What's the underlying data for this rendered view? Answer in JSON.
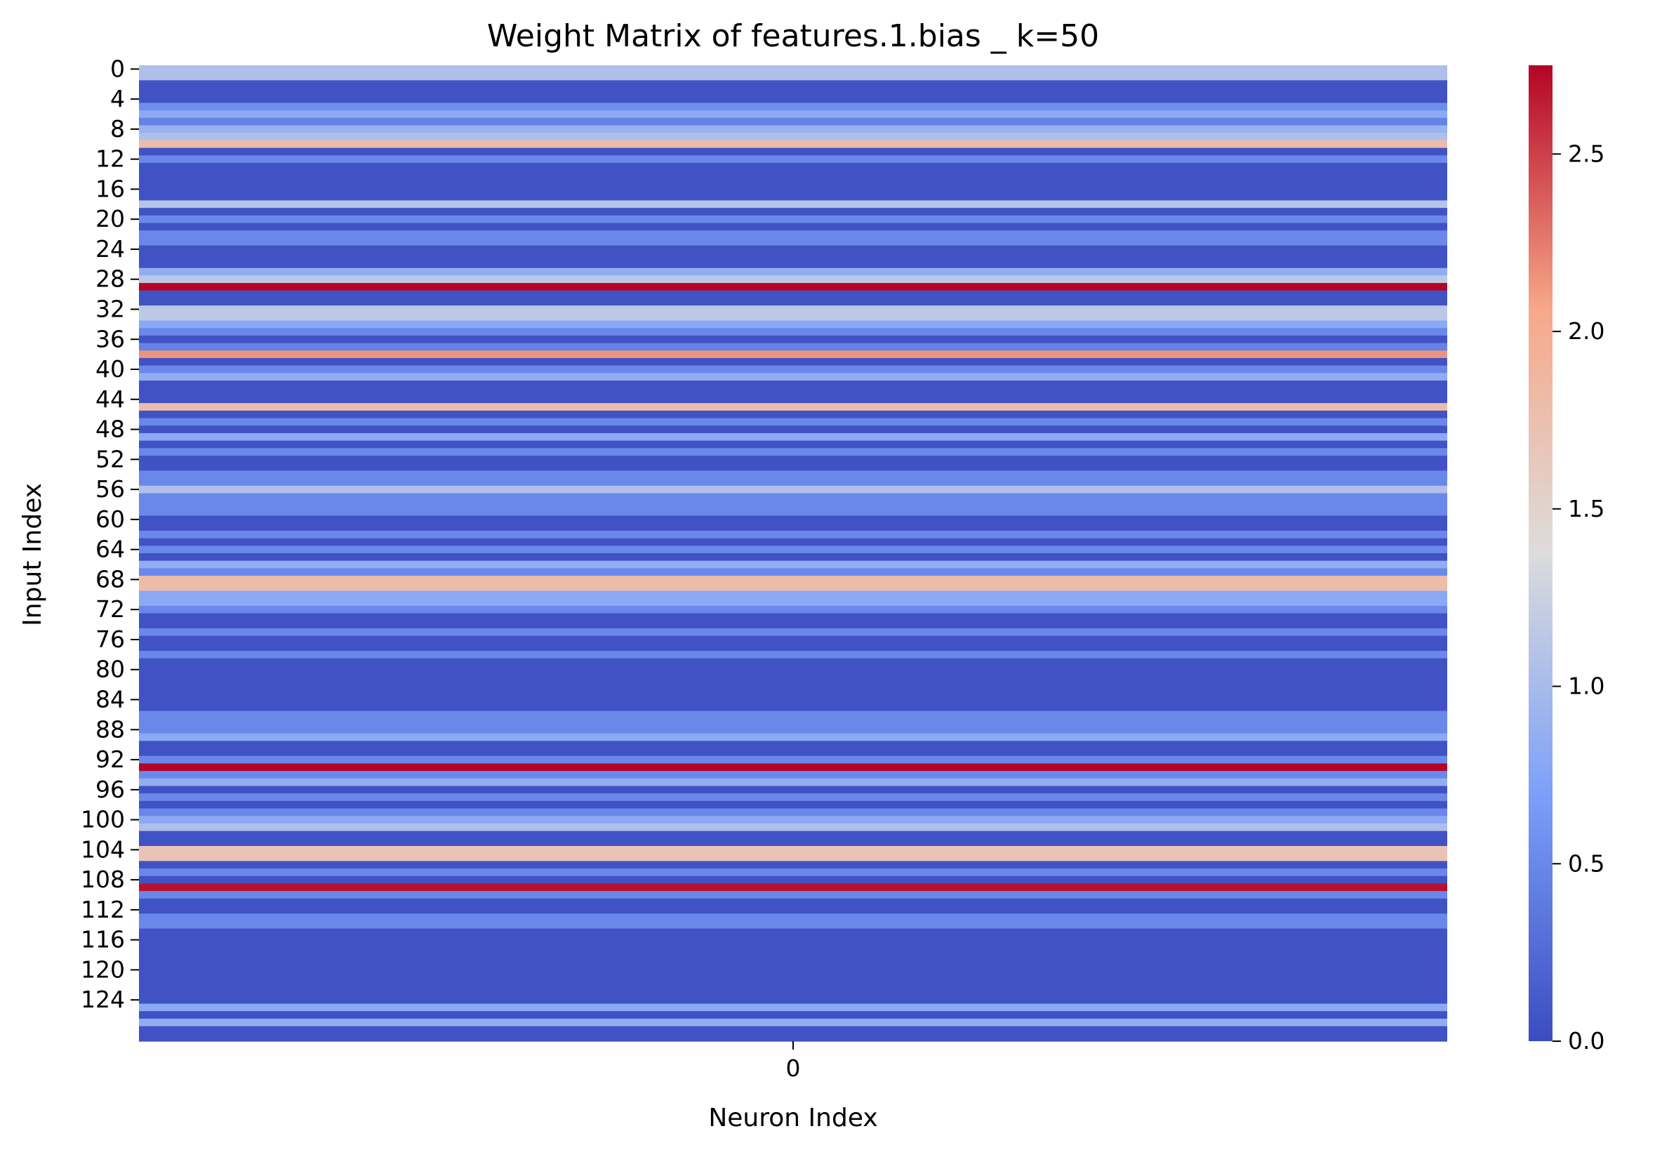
{
  "chart_data": {
    "type": "heatmap",
    "title": "Weight Matrix of features.1.bias _ k=50",
    "xlabel": "Neuron Index",
    "ylabel": "Input Index",
    "columns": [
      "0"
    ],
    "row_tick_labels": [
      "0",
      "4",
      "8",
      "12",
      "16",
      "20",
      "24",
      "28",
      "32",
      "36",
      "40",
      "44",
      "48",
      "52",
      "56",
      "60",
      "64",
      "68",
      "72",
      "76",
      "80",
      "84",
      "88",
      "92",
      "96",
      "100",
      "104",
      "108",
      "112",
      "116",
      "120",
      "124"
    ],
    "colormap": "coolwarm",
    "colorbar": {
      "vmin": 0.0,
      "vmax": 2.75,
      "tick_values": [
        0.0,
        0.5,
        1.0,
        1.5,
        2.0,
        2.5
      ],
      "tick_labels": [
        "0.0",
        "0.5",
        "1.0",
        "1.5",
        "2.0",
        "2.5"
      ]
    },
    "values": [
      1.05,
      1.05,
      0.05,
      0.05,
      0.05,
      0.55,
      0.8,
      0.45,
      0.9,
      1.05,
      1.8,
      0.05,
      0.5,
      0.05,
      0.05,
      0.05,
      0.05,
      0.05,
      1.1,
      0.05,
      0.5,
      0.05,
      0.5,
      0.5,
      0.05,
      0.05,
      0.05,
      0.85,
      1.15,
      2.75,
      0.05,
      0.05,
      1.15,
      1.15,
      0.8,
      0.5,
      0.05,
      0.45,
      2.15,
      0.05,
      0.5,
      0.85,
      0.05,
      0.05,
      0.05,
      1.8,
      0.05,
      0.5,
      0.05,
      0.8,
      0.05,
      0.5,
      0.05,
      0.05,
      0.5,
      0.5,
      1.05,
      0.5,
      0.5,
      0.5,
      0.05,
      0.05,
      0.5,
      0.05,
      0.5,
      0.05,
      0.85,
      0.5,
      1.8,
      1.8,
      0.8,
      0.8,
      0.5,
      0.05,
      0.05,
      0.5,
      0.05,
      0.05,
      0.5,
      0.05,
      0.05,
      0.05,
      0.05,
      0.05,
      0.05,
      0.05,
      0.5,
      0.5,
      0.5,
      0.8,
      0.05,
      0.05,
      0.5,
      2.75,
      0.5,
      0.85,
      0.05,
      0.5,
      0.05,
      0.5,
      0.8,
      1.05,
      0.05,
      0.05,
      1.7,
      1.7,
      0.05,
      0.5,
      0.05,
      2.7,
      0.5,
      0.05,
      0.05,
      0.5,
      0.5,
      0.05,
      0.05,
      0.05,
      0.05,
      0.05,
      0.05,
      0.05,
      0.05,
      0.05,
      0.05,
      0.8,
      0.05,
      0.85,
      0.05,
      0.05
    ]
  }
}
